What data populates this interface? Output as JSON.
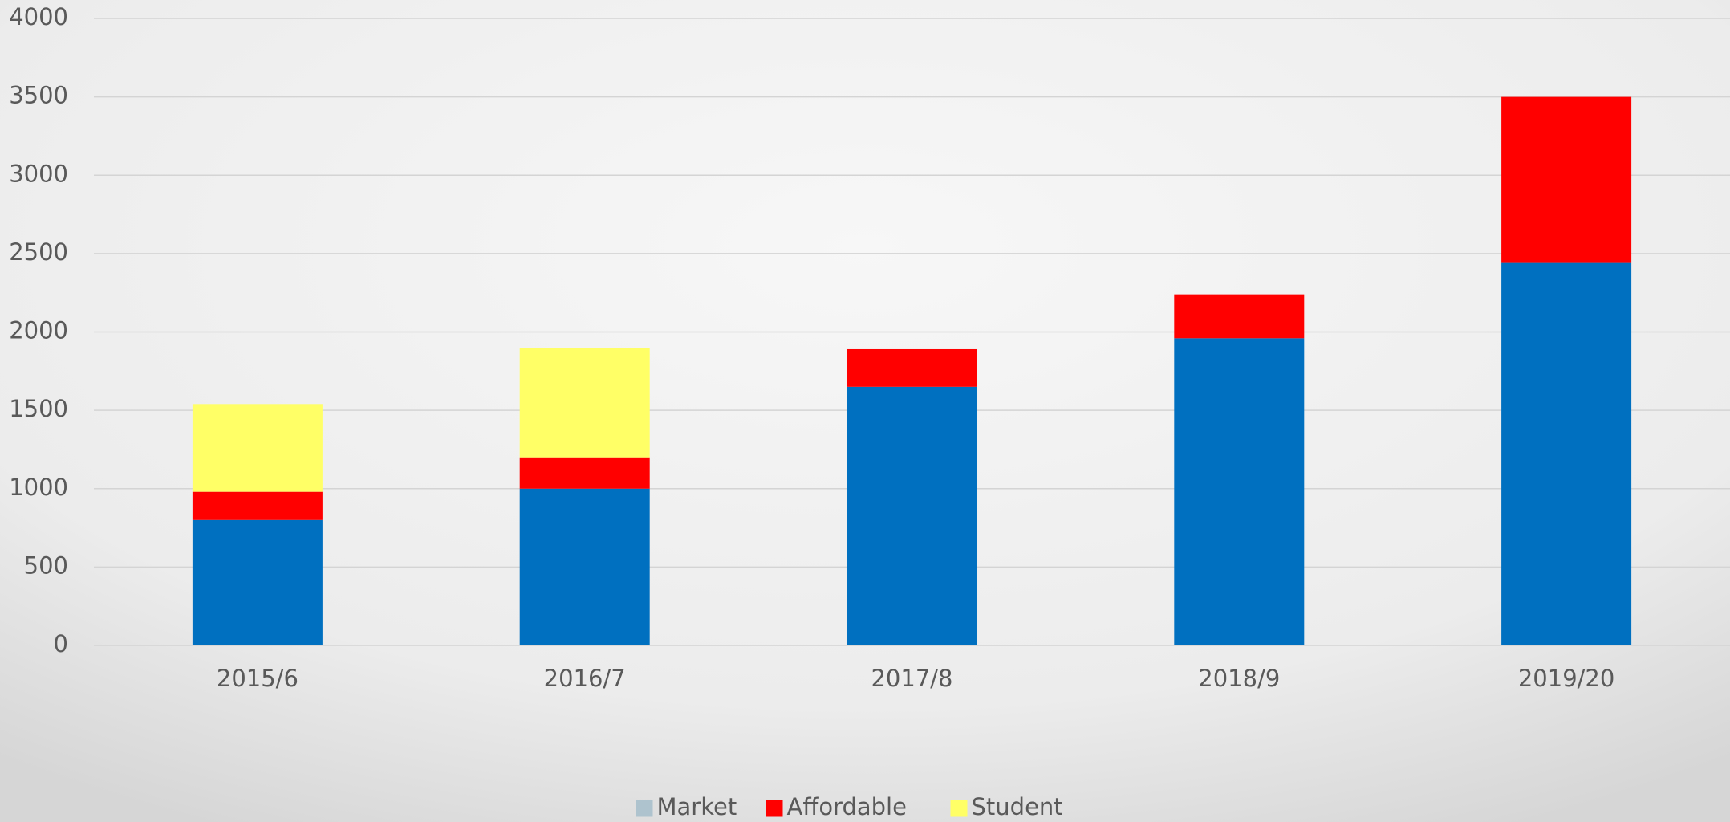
{
  "chart_data": {
    "type": "stacked_bar",
    "categories": [
      "2015/6",
      "2016/7",
      "2017/8",
      "2018/9",
      "2019/20"
    ],
    "series": [
      {
        "name": "Market",
        "color": "#0070c0",
        "legend_color": "#aec3ce",
        "values": [
          800,
          1000,
          1650,
          1960,
          2440
        ]
      },
      {
        "name": "Affordable",
        "color": "#ff0000",
        "values": [
          180,
          200,
          240,
          280,
          1060
        ]
      },
      {
        "name": "Student",
        "color": "#ffff66",
        "values": [
          560,
          700,
          0,
          0,
          0
        ]
      }
    ],
    "ylim": [
      0,
      4000
    ],
    "yticks": [
      0,
      500,
      1000,
      1500,
      2000,
      2500,
      3000,
      3500,
      4000
    ],
    "grid": true,
    "legend": "bottom"
  }
}
